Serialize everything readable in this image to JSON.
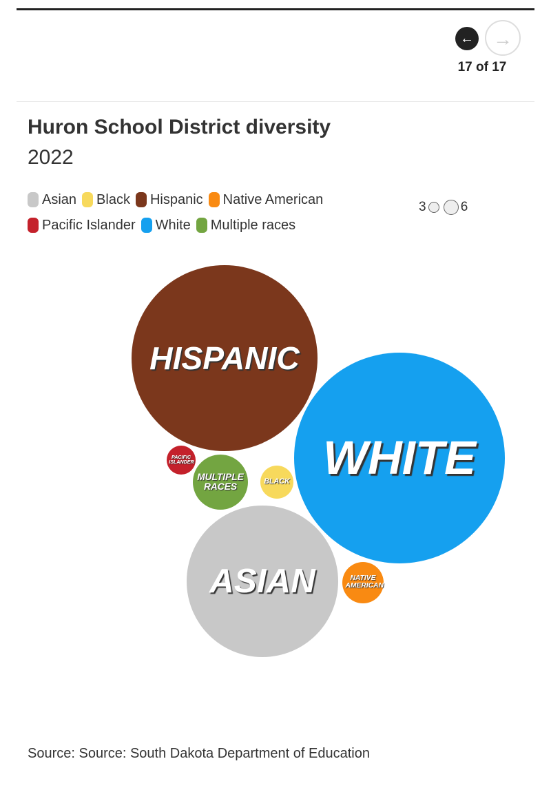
{
  "pagination": "17 of 17",
  "chart_data": {
    "type": "bubble",
    "title": "Huron School District diversity",
    "subtitle": "2022",
    "categories": [
      "Asian",
      "Black",
      "Hispanic",
      "Native American",
      "Pacific Islander",
      "White",
      "Multiple races"
    ],
    "values": [
      720,
      34,
      1090,
      54,
      26,
      1400,
      96
    ],
    "colors": [
      "#c8c8c8",
      "#f7d95c",
      "#7b371c",
      "#f98a12",
      "#c4212b",
      "#15a0ef",
      "#73a541"
    ],
    "size_legend": [
      3,
      6
    ],
    "source": "Source: Source: South Dakota Department of Education"
  }
}
